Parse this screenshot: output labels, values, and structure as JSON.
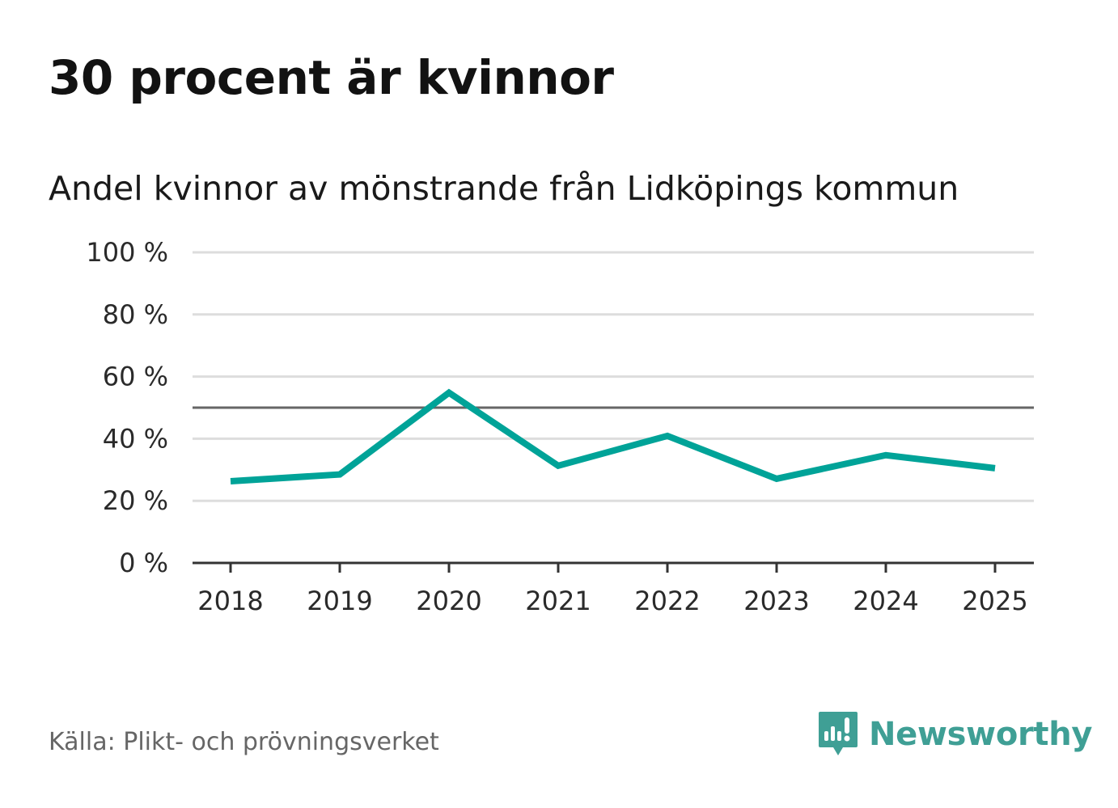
{
  "header": {
    "title": "30 procent är kvinnor",
    "subtitle": "Andel kvinnor av mönstrande från Lidköpings kommun"
  },
  "footer": {
    "source": "Källa: Plikt- och prövningsverket",
    "brand": "Newsworthy"
  },
  "colors": {
    "line": "#00a398",
    "grid": "#dddddd",
    "reference": "#666666",
    "axis": "#333333",
    "brand": "#3f9f95"
  },
  "chart_data": {
    "type": "line",
    "title": "30 procent är kvinnor",
    "subtitle": "Andel kvinnor av mönstrande från Lidköpings kommun",
    "xlabel": "",
    "ylabel": "",
    "categories": [
      "2018",
      "2019",
      "2020",
      "2021",
      "2022",
      "2023",
      "2024",
      "2025"
    ],
    "series": [
      {
        "name": "Andel kvinnor",
        "values": [
          26.3,
          28.5,
          54.8,
          31.3,
          40.9,
          27.1,
          34.7,
          30.5
        ]
      }
    ],
    "ylim": [
      0,
      100
    ],
    "yticks": [
      0,
      20,
      40,
      60,
      80,
      100
    ],
    "ytick_labels": [
      "0 %",
      "20 %",
      "40 %",
      "60 %",
      "80 %",
      "100 %"
    ],
    "reference_line": 50,
    "grid": true,
    "legend": "none"
  }
}
